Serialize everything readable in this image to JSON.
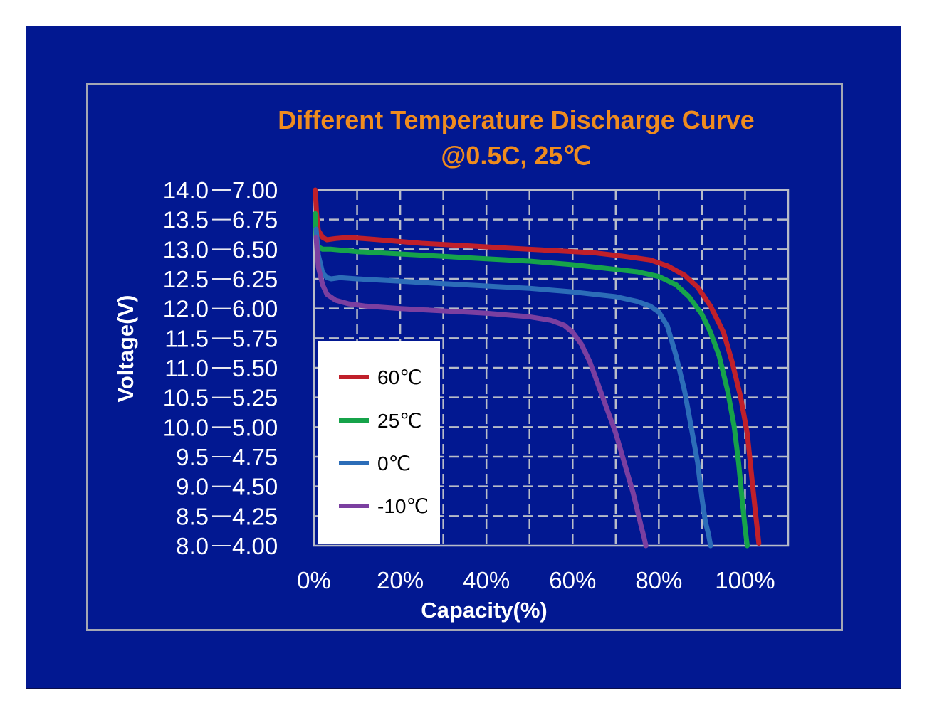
{
  "chart_data": {
    "type": "line",
    "title": "Different Temperature Discharge Curve",
    "subtitle": "@0.5C, 25℃",
    "xlabel": "Capacity(%)",
    "ylabel": "Voltage(V)",
    "xlim": [
      0,
      110
    ],
    "ylim": [
      4.0,
      7.0
    ],
    "x_ticks": [
      0,
      20,
      40,
      60,
      80,
      100
    ],
    "x_tick_labels": [
      "0%",
      "20%",
      "40%",
      "60%",
      "80%",
      "100%"
    ],
    "y_ticks": [
      4.0,
      4.25,
      4.5,
      4.75,
      5.0,
      5.25,
      5.5,
      5.75,
      6.0,
      6.25,
      6.5,
      6.75,
      7.0
    ],
    "y_tick_labels_inner": [
      "4.00",
      "4.25",
      "4.50",
      "4.75",
      "5.00",
      "5.25",
      "5.50",
      "5.75",
      "6.00",
      "6.25",
      "6.50",
      "6.75",
      "7.00"
    ],
    "y_tick_labels_outer": [
      "8.0",
      "8.5",
      "9.0",
      "9.5",
      "10.0",
      "10.5",
      "11.0",
      "11.5",
      "12.0",
      "12.5",
      "13.0",
      "13.5",
      "14.0"
    ],
    "grid": true,
    "legend_position": "bottom-left",
    "series": [
      {
        "name": "60℃",
        "color": "#c0202a",
        "x": [
          0.3,
          0.6,
          1,
          2,
          3,
          5,
          8,
          15,
          25,
          35,
          45,
          55,
          65,
          72,
          78,
          82,
          86,
          89,
          92,
          95,
          97,
          99,
          100.5,
          101.5,
          102.5,
          103.2
        ],
        "y": [
          7.0,
          6.8,
          6.66,
          6.6,
          6.58,
          6.59,
          6.6,
          6.58,
          6.55,
          6.53,
          6.51,
          6.49,
          6.47,
          6.44,
          6.41,
          6.36,
          6.28,
          6.18,
          6.02,
          5.8,
          5.55,
          5.25,
          4.95,
          4.6,
          4.25,
          4.02
        ]
      },
      {
        "name": "25℃",
        "color": "#16a34a",
        "x": [
          0.3,
          0.5,
          1,
          2,
          4,
          10,
          20,
          30,
          40,
          50,
          60,
          65,
          70,
          75,
          80,
          84,
          87,
          90,
          92,
          94,
          96,
          97.5,
          98.5,
          99.3,
          100,
          100.5
        ],
        "y": [
          6.8,
          6.6,
          6.52,
          6.5,
          6.5,
          6.48,
          6.46,
          6.44,
          6.42,
          6.4,
          6.37,
          6.35,
          6.33,
          6.31,
          6.27,
          6.2,
          6.1,
          5.95,
          5.8,
          5.6,
          5.3,
          5.0,
          4.7,
          4.4,
          4.15,
          4.0
        ]
      },
      {
        "name": "0℃",
        "color": "#2c6db8",
        "x": [
          0.5,
          1,
          2,
          3,
          4,
          6,
          10,
          20,
          30,
          40,
          50,
          60,
          65,
          70,
          75,
          78,
          80,
          82,
          84,
          86,
          87.5,
          89,
          90,
          90.8,
          91.5,
          92
        ],
        "y": [
          6.67,
          6.45,
          6.3,
          6.26,
          6.25,
          6.26,
          6.25,
          6.23,
          6.21,
          6.19,
          6.17,
          6.14,
          6.12,
          6.1,
          6.06,
          6.02,
          5.97,
          5.85,
          5.6,
          5.3,
          5.0,
          4.7,
          4.4,
          4.2,
          4.1,
          4.0
        ]
      },
      {
        "name": "-10℃",
        "color": "#7b3fa0",
        "x": [
          0.5,
          1,
          2,
          3,
          5,
          8,
          12,
          20,
          30,
          40,
          50,
          55,
          58,
          60,
          62,
          64,
          66,
          68,
          70,
          72,
          74,
          75,
          76,
          76.5,
          77
        ],
        "y": [
          6.6,
          6.35,
          6.2,
          6.12,
          6.07,
          6.04,
          6.02,
          6.0,
          5.98,
          5.96,
          5.93,
          5.9,
          5.86,
          5.8,
          5.7,
          5.55,
          5.35,
          5.15,
          4.95,
          4.7,
          4.45,
          4.3,
          4.15,
          4.08,
          4.0
        ]
      }
    ]
  }
}
